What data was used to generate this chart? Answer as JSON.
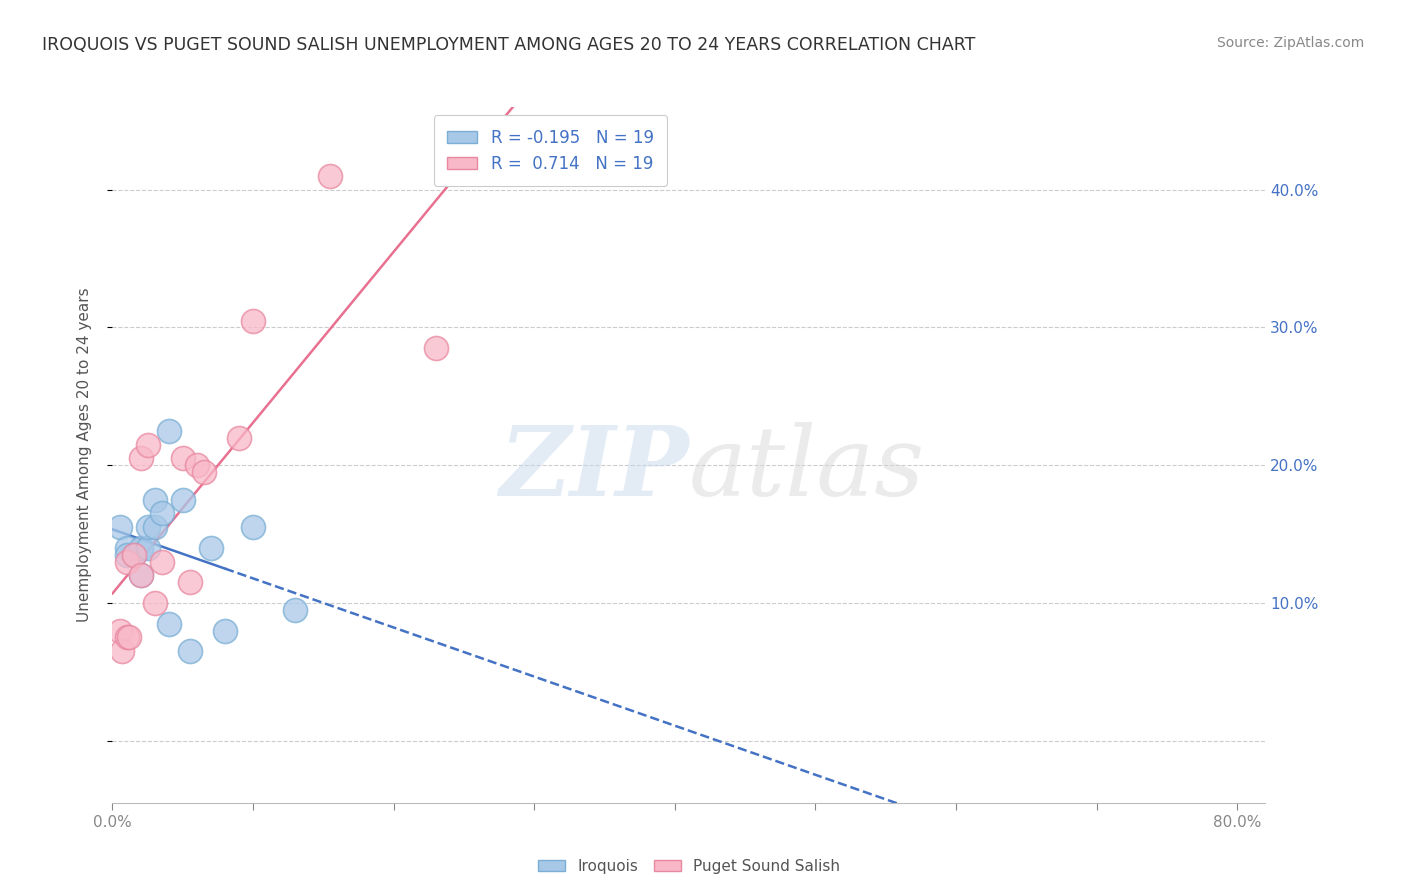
{
  "title": "IROQUOIS VS PUGET SOUND SALISH UNEMPLOYMENT AMONG AGES 20 TO 24 YEARS CORRELATION CHART",
  "source": "Source: ZipAtlas.com",
  "ylabel": "Unemployment Among Ages 20 to 24 years",
  "xlim": [
    0.0,
    0.82
  ],
  "ylim": [
    -0.045,
    0.46
  ],
  "xticks": [
    0.0,
    0.1,
    0.2,
    0.3,
    0.4,
    0.5,
    0.6,
    0.7,
    0.8
  ],
  "xticklabels_show": [
    "0.0%",
    "",
    "",
    "",
    "",
    "",
    "",
    "",
    "80.0%"
  ],
  "yticks_right": [
    0.1,
    0.2,
    0.3,
    0.4
  ],
  "yticklabels_right": [
    "10.0%",
    "20.0%",
    "30.0%",
    "40.0%"
  ],
  "iroquois_color": "#a8c8e8",
  "iroquois_edge_color": "#7aaed4",
  "puget_color": "#f8b8c8",
  "puget_edge_color": "#e888a0",
  "iroquois_line_color": "#4472c4",
  "puget_line_color": "#e87090",
  "legend_r_iroquois": "-0.195",
  "legend_r_puget": "0.714",
  "legend_n": "19",
  "iroquois_x": [
    0.005,
    0.01,
    0.01,
    0.015,
    0.02,
    0.02,
    0.025,
    0.025,
    0.03,
    0.03,
    0.035,
    0.04,
    0.04,
    0.05,
    0.055,
    0.07,
    0.08,
    0.1,
    0.13
  ],
  "iroquois_y": [
    0.155,
    0.14,
    0.135,
    0.135,
    0.14,
    0.12,
    0.14,
    0.155,
    0.155,
    0.175,
    0.165,
    0.225,
    0.085,
    0.175,
    0.065,
    0.14,
    0.08,
    0.155,
    0.095
  ],
  "puget_x": [
    0.005,
    0.007,
    0.01,
    0.01,
    0.012,
    0.015,
    0.02,
    0.02,
    0.025,
    0.03,
    0.035,
    0.05,
    0.055,
    0.06,
    0.065,
    0.09,
    0.1,
    0.155,
    0.23
  ],
  "puget_y": [
    0.08,
    0.065,
    0.13,
    0.075,
    0.075,
    0.135,
    0.12,
    0.205,
    0.215,
    0.1,
    0.13,
    0.205,
    0.115,
    0.2,
    0.195,
    0.22,
    0.305,
    0.41,
    0.285
  ],
  "background_color": "#ffffff",
  "grid_color": "#cccccc",
  "title_color": "#333333",
  "axis_label_color": "#555555",
  "tick_label_color": "#4472c4",
  "legend_r_color": "#4472c4"
}
